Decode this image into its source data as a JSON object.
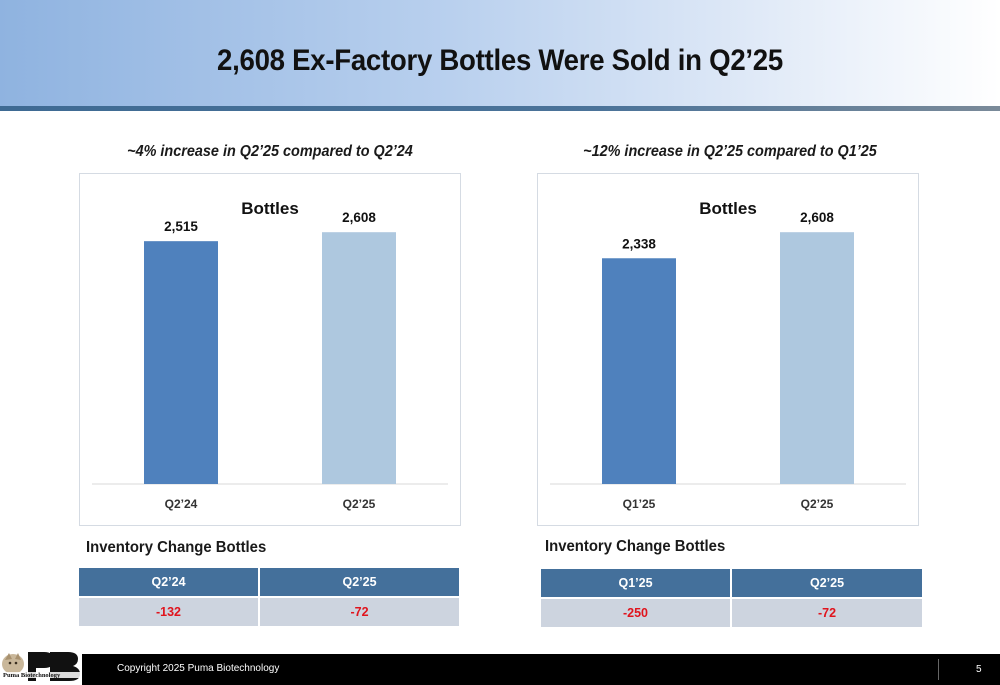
{
  "slide": {
    "title": "2,608 Ex-Factory Bottles Were Sold in Q2’25",
    "page_number": "5",
    "copyright": "Copyright 2025 Puma Biotechnology",
    "logo_text": "Puma Biotechnology",
    "colors": {
      "bar_primary": "#4f81bd",
      "bar_secondary": "#aec8df",
      "table_header": "#44709b",
      "table_row": "#cdd4df",
      "negative": "#e0141d"
    }
  },
  "left": {
    "subtitle": "~4% increase in Q2’25 compared to Q2’24",
    "inventory_label": "Inventory Change Bottles",
    "table": {
      "headers": [
        "Q2’24",
        "Q2’25"
      ],
      "values": [
        "-132",
        "-72"
      ]
    }
  },
  "right": {
    "subtitle": "~12% increase in Q2’25 compared to Q1’25",
    "inventory_label": "Inventory Change Bottles",
    "table": {
      "headers": [
        "Q1’25",
        "Q2’25"
      ],
      "values": [
        "-250",
        "-72"
      ]
    }
  },
  "chart_data": [
    {
      "type": "bar",
      "title": "Bottles",
      "categories": [
        "Q2’24",
        "Q2’25"
      ],
      "values": [
        2515,
        2608
      ],
      "labels": [
        "2,515",
        "2,608"
      ],
      "colors": [
        "#4f81bd",
        "#aec8df"
      ],
      "ylim": [
        0,
        2900
      ],
      "grid": false,
      "legend": "none"
    },
    {
      "type": "bar",
      "title": "Bottles",
      "categories": [
        "Q1’25",
        "Q2’25"
      ],
      "values": [
        2338,
        2608
      ],
      "labels": [
        "2,338",
        "2,608"
      ],
      "colors": [
        "#4f81bd",
        "#aec8df"
      ],
      "ylim": [
        0,
        2900
      ],
      "grid": false,
      "legend": "none"
    }
  ]
}
